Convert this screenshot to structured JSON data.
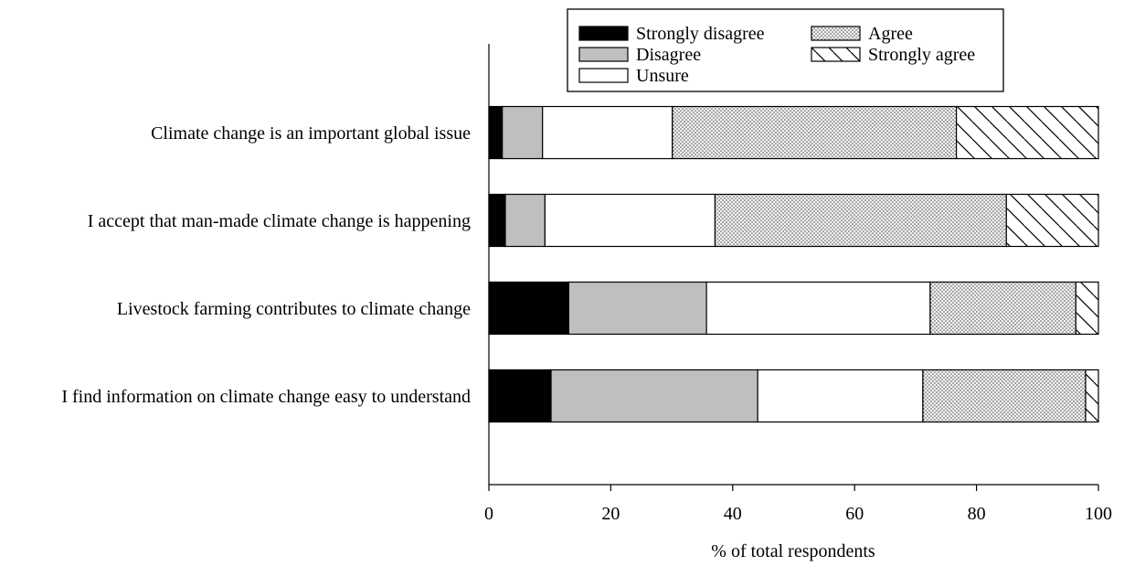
{
  "chart_data": {
    "type": "bar",
    "orientation": "horizontal",
    "stacked": true,
    "categories": [
      "Climate change is an important global issue",
      "I accept that man-made climate change is happening",
      "Livestock farming contributes to climate change",
      "I find information on climate change easy to understand"
    ],
    "series": [
      {
        "name": "Strongly disagree",
        "pattern": "solid-black",
        "values": [
          2.2,
          2.7,
          13.1,
          10.2
        ]
      },
      {
        "name": "Disagree",
        "pattern": "solid-gray",
        "values": [
          6.6,
          6.5,
          22.6,
          33.9
        ]
      },
      {
        "name": "Unsure",
        "pattern": "white",
        "values": [
          21.3,
          27.9,
          36.7,
          27.1
        ]
      },
      {
        "name": "Agree",
        "pattern": "dots",
        "values": [
          46.6,
          47.8,
          23.9,
          26.7
        ]
      },
      {
        "name": "Strongly agree",
        "pattern": "hatch",
        "values": [
          23.3,
          15.1,
          3.7,
          2.1
        ]
      }
    ],
    "xlabel": "% of total respondents",
    "ylabel": "",
    "xlim": [
      0,
      100
    ],
    "xticks": [
      "0",
      "20",
      "40",
      "60",
      "80",
      "100"
    ],
    "grid": false,
    "legend": "top-right"
  }
}
